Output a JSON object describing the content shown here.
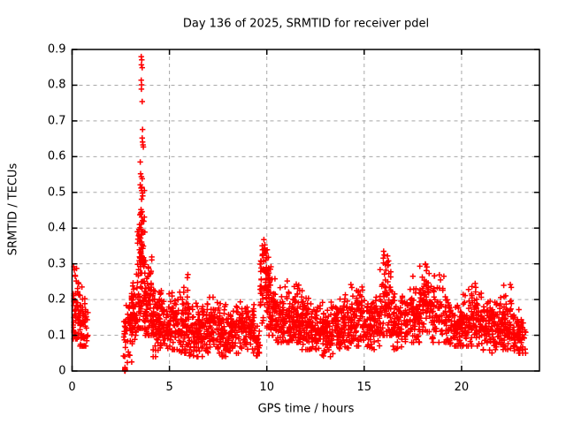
{
  "window": {
    "background": "#ffffff"
  },
  "chart_data": {
    "type": "scatter",
    "title": "Day 136 of 2025, SRMTID for receiver pdel",
    "xlabel": "GPS time / hours",
    "ylabel": "SRMTID / TECUs",
    "xlim": [
      0,
      24
    ],
    "ylim": [
      0,
      0.9
    ],
    "xticks": [
      {
        "v": 0,
        "label": "0"
      },
      {
        "v": 5,
        "label": "5"
      },
      {
        "v": 10,
        "label": "10"
      },
      {
        "v": 15,
        "label": "15"
      },
      {
        "v": 20,
        "label": "20"
      }
    ],
    "yticks": [
      {
        "v": 0,
        "label": "0"
      },
      {
        "v": 0.1,
        "label": "0.1"
      },
      {
        "v": 0.2,
        "label": "0.2"
      },
      {
        "v": 0.3,
        "label": "0.3"
      },
      {
        "v": 0.4,
        "label": "0.4"
      },
      {
        "v": 0.5,
        "label": "0.5"
      },
      {
        "v": 0.6,
        "label": "0.6"
      },
      {
        "v": 0.7,
        "label": "0.7"
      },
      {
        "v": 0.8,
        "label": "0.8"
      },
      {
        "v": 0.9,
        "label": "0.9"
      }
    ],
    "grid": true,
    "legend": "none",
    "marker": "plus",
    "marker_color": "#ff0000",
    "border_color": "#000000",
    "grid_color": "#a8a8a8",
    "seed": 136,
    "epoch_step_hours": 0.025,
    "segments": [
      {
        "t0": 0.02,
        "t1": 0.35,
        "n": 55,
        "lo": 0.09,
        "hi": 0.3,
        "mode": 0.16
      },
      {
        "t0": 0.4,
        "t1": 0.82,
        "n": 55,
        "lo": 0.07,
        "hi": 0.25,
        "mode": 0.13
      },
      {
        "t0": 2.62,
        "t1": 3.1,
        "n": 45,
        "lo": 0.02,
        "hi": 0.22,
        "mode": 0.11
      },
      {
        "t0": 3.05,
        "t1": 3.35,
        "n": 45,
        "lo": 0.08,
        "hi": 0.28,
        "mode": 0.16
      },
      {
        "t0": 3.35,
        "t1": 3.75,
        "n": 95,
        "lo": 0.12,
        "hi": 0.55,
        "mode": 0.24
      },
      {
        "t0": 3.75,
        "t1": 4.1,
        "n": 70,
        "lo": 0.1,
        "hi": 0.32,
        "mode": 0.18
      },
      {
        "t0": 4.1,
        "t1": 4.6,
        "n": 80,
        "lo": 0.04,
        "hi": 0.25,
        "mode": 0.13
      },
      {
        "t0": 4.6,
        "t1": 5.4,
        "n": 95,
        "lo": 0.06,
        "hi": 0.22,
        "mode": 0.12
      },
      {
        "t0": 5.4,
        "t1": 5.95,
        "n": 70,
        "lo": 0.05,
        "hi": 0.27,
        "mode": 0.13
      },
      {
        "t0": 5.95,
        "t1": 6.7,
        "n": 95,
        "lo": 0.04,
        "hi": 0.2,
        "mode": 0.11
      },
      {
        "t0": 6.7,
        "t1": 7.6,
        "n": 105,
        "lo": 0.05,
        "hi": 0.21,
        "mode": 0.12
      },
      {
        "t0": 7.6,
        "t1": 8.5,
        "n": 105,
        "lo": 0.03,
        "hi": 0.19,
        "mode": 0.11
      },
      {
        "t0": 8.5,
        "t1": 9.35,
        "n": 95,
        "lo": 0.05,
        "hi": 0.2,
        "mode": 0.12
      },
      {
        "t0": 9.35,
        "t1": 9.65,
        "n": 30,
        "lo": 0.03,
        "hi": 0.14,
        "mode": 0.08
      },
      {
        "t0": 9.65,
        "t1": 10.1,
        "n": 75,
        "lo": 0.12,
        "hi": 0.36,
        "mode": 0.23
      },
      {
        "t0": 10.1,
        "t1": 10.45,
        "n": 55,
        "lo": 0.1,
        "hi": 0.3,
        "mode": 0.17
      },
      {
        "t0": 10.45,
        "t1": 11.2,
        "n": 95,
        "lo": 0.08,
        "hi": 0.25,
        "mode": 0.14
      },
      {
        "t0": 11.2,
        "t1": 11.8,
        "n": 80,
        "lo": 0.08,
        "hi": 0.25,
        "mode": 0.15
      },
      {
        "t0": 11.8,
        "t1": 12.6,
        "n": 100,
        "lo": 0.06,
        "hi": 0.23,
        "mode": 0.13
      },
      {
        "t0": 12.6,
        "t1": 13.4,
        "n": 100,
        "lo": 0.04,
        "hi": 0.2,
        "mode": 0.11
      },
      {
        "t0": 13.4,
        "t1": 14.3,
        "n": 105,
        "lo": 0.06,
        "hi": 0.22,
        "mode": 0.13
      },
      {
        "t0": 14.3,
        "t1": 15.0,
        "n": 90,
        "lo": 0.07,
        "hi": 0.24,
        "mode": 0.14
      },
      {
        "t0": 15.0,
        "t1": 15.8,
        "n": 95,
        "lo": 0.06,
        "hi": 0.22,
        "mode": 0.13
      },
      {
        "t0": 15.8,
        "t1": 16.45,
        "n": 80,
        "lo": 0.1,
        "hi": 0.33,
        "mode": 0.18
      },
      {
        "t0": 16.45,
        "t1": 17.3,
        "n": 95,
        "lo": 0.06,
        "hi": 0.22,
        "mode": 0.13
      },
      {
        "t0": 17.3,
        "t1": 17.85,
        "n": 70,
        "lo": 0.08,
        "hi": 0.26,
        "mode": 0.14
      },
      {
        "t0": 17.85,
        "t1": 18.45,
        "n": 75,
        "lo": 0.11,
        "hi": 0.3,
        "mode": 0.19
      },
      {
        "t0": 18.45,
        "t1": 19.4,
        "n": 95,
        "lo": 0.08,
        "hi": 0.27,
        "mode": 0.15
      },
      {
        "t0": 19.4,
        "t1": 20.2,
        "n": 90,
        "lo": 0.07,
        "hi": 0.22,
        "mode": 0.13
      },
      {
        "t0": 20.2,
        "t1": 21.1,
        "n": 95,
        "lo": 0.07,
        "hi": 0.24,
        "mode": 0.14
      },
      {
        "t0": 21.1,
        "t1": 21.9,
        "n": 90,
        "lo": 0.05,
        "hi": 0.2,
        "mode": 0.12
      },
      {
        "t0": 21.9,
        "t1": 22.65,
        "n": 90,
        "lo": 0.06,
        "hi": 0.24,
        "mode": 0.13
      },
      {
        "t0": 22.65,
        "t1": 23.35,
        "n": 70,
        "lo": 0.05,
        "hi": 0.18,
        "mode": 0.1
      }
    ],
    "outliers": [
      [
        3.55,
        0.88
      ],
      [
        3.58,
        0.871
      ],
      [
        3.56,
        0.857
      ],
      [
        3.6,
        0.849
      ],
      [
        3.55,
        0.814
      ],
      [
        3.57,
        0.801
      ],
      [
        3.56,
        0.789
      ],
      [
        3.6,
        0.754
      ],
      [
        3.62,
        0.676
      ],
      [
        3.6,
        0.652
      ],
      [
        3.62,
        0.641
      ],
      [
        3.64,
        0.633
      ],
      [
        3.66,
        0.627
      ],
      [
        3.5,
        0.585
      ],
      [
        3.52,
        0.552
      ],
      [
        3.56,
        0.544
      ],
      [
        3.6,
        0.538
      ],
      [
        3.5,
        0.521
      ],
      [
        3.54,
        0.512
      ],
      [
        3.58,
        0.505
      ],
      [
        3.61,
        0.498
      ],
      [
        3.63,
        0.49
      ],
      [
        3.57,
        0.481
      ],
      [
        3.54,
        0.452
      ],
      [
        3.59,
        0.446
      ],
      [
        3.51,
        0.439
      ],
      [
        3.57,
        0.431
      ],
      [
        3.62,
        0.421
      ],
      [
        3.55,
        0.411
      ],
      [
        3.49,
        0.401
      ],
      [
        3.54,
        0.396
      ],
      [
        3.59,
        0.39
      ],
      [
        3.56,
        0.383
      ],
      [
        3.52,
        0.372
      ],
      [
        3.57,
        0.361
      ],
      [
        3.6,
        0.352
      ],
      [
        3.55,
        0.345
      ],
      [
        3.5,
        0.331
      ],
      [
        3.6,
        0.321
      ],
      [
        3.45,
        0.309
      ],
      [
        3.7,
        0.304
      ],
      [
        2.7,
        0.001
      ],
      [
        2.71,
        0.004
      ],
      [
        2.72,
        0.0
      ],
      [
        2.73,
        0.003
      ],
      [
        2.72,
        0.007
      ],
      [
        2.715,
        0.01
      ],
      [
        2.64,
        0.042
      ],
      [
        2.9,
        0.045
      ],
      [
        9.85,
        0.368
      ],
      [
        9.9,
        0.353
      ],
      [
        9.88,
        0.344
      ],
      [
        9.93,
        0.337
      ],
      [
        9.96,
        0.329
      ],
      [
        9.82,
        0.323
      ],
      [
        10.0,
        0.317
      ],
      [
        9.94,
        0.31
      ],
      [
        16.0,
        0.335
      ],
      [
        16.03,
        0.325
      ],
      [
        15.98,
        0.316
      ],
      [
        16.2,
        0.322
      ],
      [
        16.25,
        0.308
      ],
      [
        0.08,
        0.292
      ],
      [
        0.12,
        0.283
      ],
      [
        18.15,
        0.298
      ],
      [
        18.22,
        0.291
      ],
      [
        18.6,
        0.266
      ],
      [
        17.5,
        0.265
      ],
      [
        5.95,
        0.27
      ],
      [
        5.92,
        0.261
      ],
      [
        11.05,
        0.252
      ],
      [
        14.32,
        0.242
      ],
      [
        20.7,
        0.245
      ],
      [
        20.73,
        0.234
      ],
      [
        22.5,
        0.242
      ],
      [
        22.55,
        0.234
      ]
    ]
  }
}
